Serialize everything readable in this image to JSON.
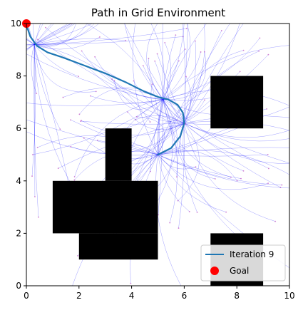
{
  "chart_data": {
    "type": "line",
    "title": "Path in Grid Environment",
    "xlabel": "",
    "ylabel": "",
    "xlim": [
      0,
      10
    ],
    "ylim": [
      0,
      10
    ],
    "x_ticks": [
      0,
      2,
      4,
      6,
      8,
      10
    ],
    "y_ticks": [
      0,
      2,
      4,
      6,
      8,
      10
    ],
    "grid": false,
    "legend_position": "lower-right",
    "colors": {
      "path": "#1f77b4",
      "goal": "#ff0000",
      "obstacle": "#000000",
      "explore": "#0000ff",
      "sample": "#c050c0"
    },
    "obstacles": [
      {
        "x": [
          1,
          5
        ],
        "y": [
          2,
          4
        ]
      },
      {
        "x": [
          2,
          5
        ],
        "y": [
          1,
          2
        ]
      },
      {
        "x": [
          3,
          4
        ],
        "y": [
          4,
          6
        ]
      },
      {
        "x": [
          7,
          9
        ],
        "y": [
          6,
          8
        ]
      },
      {
        "x": [
          7,
          9
        ],
        "y": [
          0,
          2
        ]
      }
    ],
    "series": [
      {
        "name": "Iteration 9",
        "x": [
          5.0,
          5.5,
          5.85,
          6.0,
          5.95,
          5.75,
          5.4,
          5.0,
          4.5,
          3.8,
          3.0,
          2.2,
          1.4,
          0.8,
          0.4,
          0.15,
          0.05,
          0.0
        ],
        "y": [
          5.0,
          5.25,
          5.7,
          6.2,
          6.6,
          6.9,
          7.1,
          7.2,
          7.4,
          7.75,
          8.1,
          8.4,
          8.7,
          8.9,
          9.15,
          9.5,
          9.8,
          10.0
        ]
      }
    ],
    "goal": {
      "name": "Goal",
      "x": 0.0,
      "y": 10.0
    }
  }
}
